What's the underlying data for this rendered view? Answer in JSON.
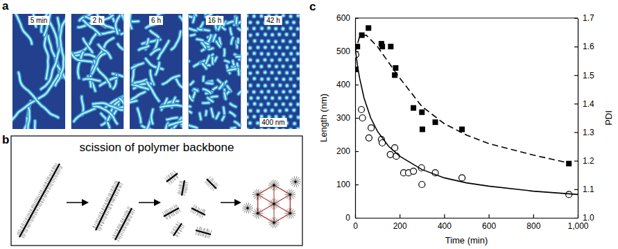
{
  "panel_a": {
    "panel_label": "a",
    "time_labels": [
      "5 min",
      "2 h",
      "6 h",
      "16 h",
      "42 h"
    ],
    "scale_bar": "400 nm"
  },
  "panel_b": {
    "panel_label": "b",
    "title": "scission of polymer backbone"
  },
  "chart_data": {
    "panel_label": "c",
    "type": "scatter",
    "x_label": "Time (min)",
    "y_label": "Length (nm)",
    "y2_label": "PDI",
    "xlim": [
      0,
      1000
    ],
    "xticks": [
      0,
      200,
      400,
      600,
      800,
      {
        "value": 1000,
        "label": "1,000"
      }
    ],
    "ylim": [
      0,
      600
    ],
    "yticks": [
      0,
      100,
      200,
      300,
      400,
      500,
      600
    ],
    "y2lim": [
      1.0,
      1.7
    ],
    "y2ticks": [
      {
        "value": 1.0,
        "label": "1.0"
      },
      1.1,
      1.2,
      1.3,
      1.4,
      1.5,
      1.6,
      1.7
    ],
    "series": [
      {
        "type": "scatter",
        "marker": "circle-open",
        "color": "#000000",
        "x": [
          3,
          28,
          33,
          62,
          72,
          118,
          122,
          158,
          178,
          185,
          218,
          240,
          262,
          298,
          300,
          360,
          480,
          960
        ],
        "values": [
          490,
          325,
          300,
          240,
          270,
          235,
          225,
          190,
          210,
          185,
          135,
          135,
          140,
          150,
          100,
          135,
          120,
          70
        ]
      },
      {
        "type": "line",
        "line_style": "solid",
        "color": "#000000",
        "x": [
          0,
          10,
          20,
          40,
          70,
          100,
          150,
          200,
          300,
          400,
          500,
          600,
          800,
          1000
        ],
        "values": [
          510,
          460,
          420,
          360,
          300,
          260,
          215,
          185,
          145,
          120,
          105,
          95,
          80,
          70
        ]
      },
      {
        "type": "scatter",
        "marker": "square",
        "color": "#000000",
        "axis": "y2",
        "x": [
          3,
          10,
          30,
          60,
          118,
          122,
          160,
          178,
          182,
          262,
          300,
          302,
          360,
          480,
          960
        ],
        "values": [
          1.52,
          1.6,
          1.64,
          1.665,
          1.61,
          1.6,
          1.6,
          1.5,
          1.525,
          1.385,
          1.37,
          1.31,
          1.335,
          1.31,
          1.19
        ]
      },
      {
        "type": "line",
        "line_style": "dashed",
        "color": "#000000",
        "axis": "y2",
        "x": [
          0,
          20,
          50,
          100,
          150,
          200,
          300,
          400,
          500,
          600,
          800,
          970
        ],
        "values": [
          1.58,
          1.635,
          1.64,
          1.6,
          1.545,
          1.49,
          1.39,
          1.33,
          1.29,
          1.26,
          1.22,
          1.19
        ]
      }
    ]
  }
}
